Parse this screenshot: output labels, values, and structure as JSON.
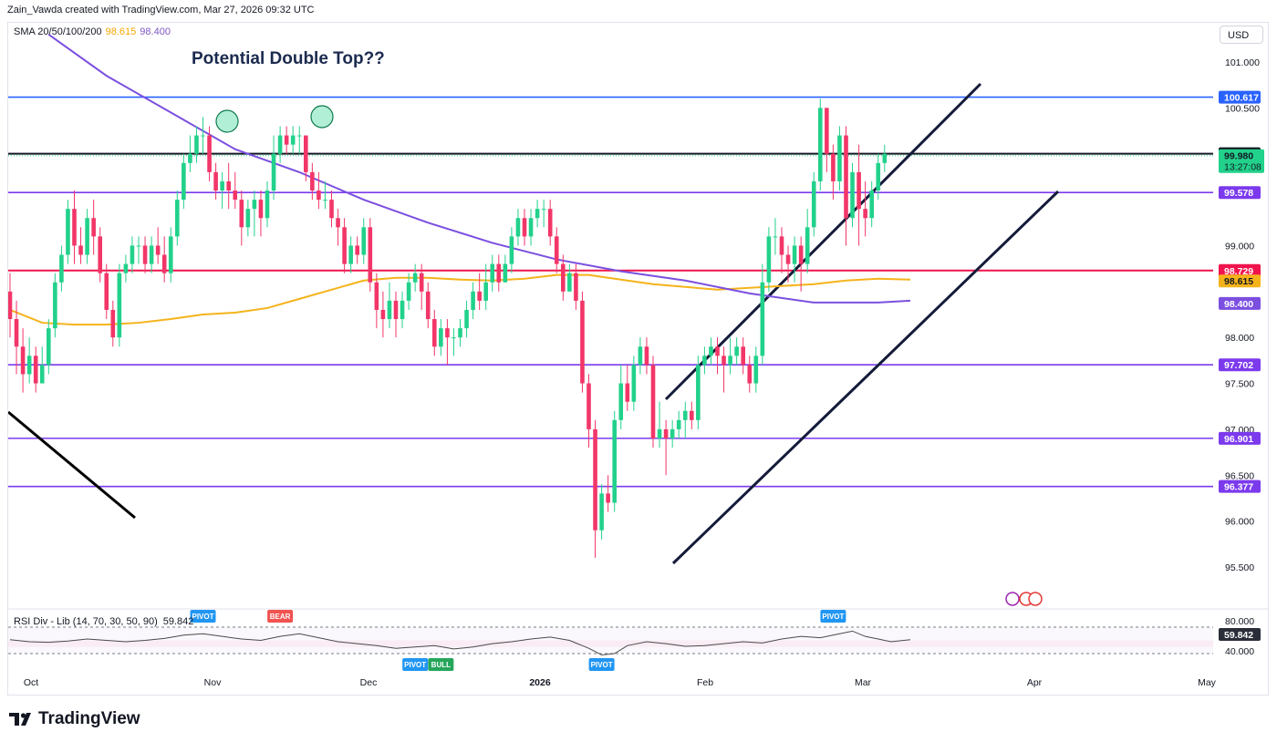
{
  "header": {
    "text": "Zain_Vawda created with TradingView.com, Mar 27, 2026 09:32 UTC"
  },
  "legend": {
    "label": "SMA 20/50/100/200",
    "val1": "98.615",
    "val2": "98.400"
  },
  "currency": "USD",
  "annotation": "Potential Double Top??",
  "rsi": {
    "label": "RSI Div - Lib (14, 70, 30, 50, 90)",
    "value": "59.842",
    "ticks": [
      "80.000",
      "40.000"
    ],
    "current": "59.842"
  },
  "brand": "TradingView",
  "colors": {
    "up": "#22d18b",
    "down": "#f23668",
    "sma_long": "#7b4fe0",
    "sma_mid": "#f5b31b",
    "resistance_red": "#f0134d",
    "blue_line": "#2962ff",
    "purple_line": "#7c3aed"
  },
  "chart_data": {
    "type": "candlestick",
    "instrument_note": "US Dollar Index daily",
    "y_range": [
      95.3,
      101.5
    ],
    "y_ticks": [
      "101.000",
      "100.500",
      "99.000",
      "98.000",
      "97.500",
      "97.000",
      "96.500",
      "96.000",
      "95.500"
    ],
    "x_labels": [
      "Oct",
      "Nov",
      "Dec",
      "2026",
      "Feb",
      "Mar",
      "Apr",
      "May"
    ],
    "horizontal_levels": [
      {
        "label": "100.617",
        "value": 100.617,
        "color": "#2962ff"
      },
      {
        "label": "100.001",
        "value": 100.001,
        "color": "#131722"
      },
      {
        "label": "99.578",
        "value": 99.578,
        "color": "#7c3aed"
      },
      {
        "label": "98.729",
        "value": 98.729,
        "color": "#f0134d"
      },
      {
        "label": "97.702",
        "value": 97.702,
        "color": "#7c3aed"
      },
      {
        "label": "96.901",
        "value": 96.901,
        "color": "#7c3aed"
      },
      {
        "label": "96.377",
        "value": 96.377,
        "color": "#7c3aed"
      }
    ],
    "last_price": {
      "label": "99.980",
      "countdown": "13:27:08"
    },
    "sma_labels": [
      {
        "label": "98.615",
        "color": "#f5b31b"
      },
      {
        "label": "98.400",
        "color": "#7b4fe0"
      }
    ],
    "candles": [
      [
        98.5,
        98.2,
        98.7,
        98.0
      ],
      [
        98.2,
        97.9,
        98.4,
        97.6
      ],
      [
        97.9,
        97.6,
        98.1,
        97.4
      ],
      [
        97.6,
        97.8,
        98.0,
        97.5
      ],
      [
        97.8,
        97.5,
        97.9,
        97.4
      ],
      [
        97.5,
        97.7,
        97.9,
        97.5
      ],
      [
        97.7,
        98.1,
        98.2,
        97.6
      ],
      [
        98.1,
        98.6,
        98.7,
        98.0
      ],
      [
        98.6,
        98.9,
        99.0,
        98.5
      ],
      [
        98.9,
        99.4,
        99.5,
        98.8
      ],
      [
        99.4,
        99.0,
        99.6,
        98.8
      ],
      [
        99.0,
        98.9,
        99.2,
        98.8
      ],
      [
        98.9,
        99.3,
        99.4,
        98.8
      ],
      [
        99.3,
        99.1,
        99.5,
        98.9
      ],
      [
        99.1,
        98.7,
        99.2,
        98.6
      ],
      [
        98.7,
        98.3,
        98.8,
        98.2
      ],
      [
        98.3,
        98.0,
        98.4,
        97.9
      ],
      [
        98.0,
        98.7,
        98.8,
        97.9
      ],
      [
        98.7,
        98.8,
        98.9,
        98.6
      ],
      [
        98.8,
        99.0,
        99.1,
        98.7
      ],
      [
        99.0,
        99.0,
        99.1,
        98.8
      ],
      [
        99.0,
        98.8,
        99.1,
        98.7
      ],
      [
        98.8,
        99.0,
        99.1,
        98.7
      ],
      [
        99.0,
        98.9,
        99.2,
        98.8
      ],
      [
        98.9,
        98.7,
        99.1,
        98.6
      ],
      [
        98.7,
        99.1,
        99.2,
        98.6
      ],
      [
        99.1,
        99.5,
        99.6,
        99.0
      ],
      [
        99.5,
        99.9,
        100.0,
        99.4
      ],
      [
        99.9,
        100.0,
        100.2,
        99.8
      ],
      [
        100.0,
        100.2,
        100.3,
        99.9
      ],
      [
        100.2,
        100.2,
        100.4,
        100.0
      ],
      [
        100.2,
        99.8,
        100.3,
        99.7
      ],
      [
        99.8,
        99.6,
        99.9,
        99.5
      ],
      [
        99.6,
        99.7,
        99.8,
        99.4
      ],
      [
        99.7,
        99.6,
        99.9,
        99.4
      ],
      [
        99.6,
        99.5,
        99.8,
        99.4
      ],
      [
        99.5,
        99.2,
        99.6,
        99.0
      ],
      [
        99.2,
        99.4,
        99.5,
        99.1
      ],
      [
        99.4,
        99.5,
        99.6,
        99.1
      ],
      [
        99.5,
        99.3,
        99.6,
        99.1
      ],
      [
        99.3,
        99.6,
        99.7,
        99.2
      ],
      [
        99.6,
        100.0,
        100.2,
        99.5
      ],
      [
        100.0,
        100.2,
        100.3,
        99.9
      ],
      [
        100.2,
        100.1,
        100.3,
        100.0
      ],
      [
        100.1,
        100.2,
        100.3,
        100.0
      ],
      [
        100.2,
        100.2,
        100.3,
        100.0
      ],
      [
        100.2,
        99.8,
        100.2,
        99.7
      ],
      [
        99.8,
        99.6,
        99.9,
        99.5
      ],
      [
        99.6,
        99.5,
        99.8,
        99.4
      ],
      [
        99.5,
        99.5,
        99.7,
        99.4
      ],
      [
        99.5,
        99.3,
        99.6,
        99.2
      ],
      [
        99.3,
        99.2,
        99.4,
        99.0
      ],
      [
        99.2,
        98.8,
        99.3,
        98.7
      ],
      [
        98.8,
        99.0,
        99.1,
        98.7
      ],
      [
        99.0,
        98.9,
        99.1,
        98.8
      ],
      [
        98.9,
        99.2,
        99.3,
        98.8
      ],
      [
        99.2,
        98.6,
        99.3,
        98.5
      ],
      [
        98.6,
        98.3,
        98.7,
        98.1
      ],
      [
        98.3,
        98.2,
        98.5,
        98.0
      ],
      [
        98.2,
        98.4,
        98.6,
        98.1
      ],
      [
        98.4,
        98.2,
        98.5,
        98.0
      ],
      [
        98.2,
        98.4,
        98.5,
        98.1
      ],
      [
        98.4,
        98.6,
        98.7,
        98.3
      ],
      [
        98.6,
        98.7,
        98.8,
        98.5
      ],
      [
        98.7,
        98.5,
        98.8,
        98.3
      ],
      [
        98.5,
        98.2,
        98.6,
        98.1
      ],
      [
        98.2,
        97.9,
        98.3,
        97.8
      ],
      [
        97.9,
        98.1,
        98.2,
        97.8
      ],
      [
        98.1,
        98.0,
        98.2,
        97.7
      ],
      [
        98.0,
        98.0,
        98.1,
        97.8
      ],
      [
        98.0,
        98.1,
        98.2,
        97.9
      ],
      [
        98.1,
        98.3,
        98.4,
        98.0
      ],
      [
        98.3,
        98.5,
        98.6,
        98.2
      ],
      [
        98.5,
        98.4,
        98.7,
        98.3
      ],
      [
        98.4,
        98.6,
        98.8,
        98.3
      ],
      [
        98.6,
        98.8,
        98.9,
        98.5
      ],
      [
        98.8,
        98.6,
        98.9,
        98.5
      ],
      [
        98.6,
        98.8,
        98.9,
        98.6
      ],
      [
        98.8,
        99.1,
        99.2,
        98.7
      ],
      [
        99.1,
        99.3,
        99.4,
        99.0
      ],
      [
        99.3,
        99.1,
        99.4,
        99.0
      ],
      [
        99.1,
        99.3,
        99.4,
        99.0
      ],
      [
        99.3,
        99.4,
        99.5,
        99.2
      ],
      [
        99.4,
        99.4,
        99.5,
        99.2
      ],
      [
        99.4,
        99.1,
        99.5,
        99.0
      ],
      [
        99.1,
        98.8,
        99.2,
        98.7
      ],
      [
        98.8,
        98.5,
        98.9,
        98.4
      ],
      [
        98.5,
        98.7,
        98.8,
        98.5
      ],
      [
        98.7,
        98.4,
        98.8,
        98.3
      ],
      [
        98.4,
        97.5,
        98.5,
        97.4
      ],
      [
        97.5,
        97.0,
        97.6,
        96.8
      ],
      [
        97.0,
        95.9,
        97.1,
        95.6
      ],
      [
        95.9,
        96.3,
        96.4,
        95.8
      ],
      [
        96.3,
        96.2,
        96.5,
        96.1
      ],
      [
        96.2,
        97.1,
        97.2,
        96.1
      ],
      [
        97.1,
        97.5,
        97.7,
        97.0
      ],
      [
        97.5,
        97.3,
        97.7,
        97.2
      ],
      [
        97.3,
        97.7,
        97.8,
        97.2
      ],
      [
        97.7,
        97.9,
        98.0,
        97.6
      ],
      [
        97.9,
        97.7,
        98.0,
        97.6
      ],
      [
        97.7,
        96.9,
        97.8,
        96.8
      ],
      [
        96.9,
        97.0,
        97.3,
        96.8
      ],
      [
        97.0,
        96.9,
        97.1,
        96.5
      ],
      [
        96.9,
        97.0,
        97.1,
        96.8
      ],
      [
        97.0,
        97.1,
        97.2,
        96.9
      ],
      [
        97.1,
        97.2,
        97.3,
        96.9
      ],
      [
        97.2,
        97.1,
        97.3,
        97.0
      ],
      [
        97.1,
        97.7,
        97.8,
        97.0
      ],
      [
        97.7,
        97.8,
        97.9,
        97.6
      ],
      [
        97.8,
        97.9,
        98.0,
        97.7
      ],
      [
        97.9,
        97.8,
        98.0,
        97.6
      ],
      [
        97.8,
        97.7,
        97.9,
        97.4
      ],
      [
        97.7,
        97.8,
        98.0,
        97.6
      ],
      [
        97.8,
        97.9,
        98.0,
        97.7
      ],
      [
        97.9,
        97.7,
        98.0,
        97.6
      ],
      [
        97.7,
        97.5,
        97.8,
        97.4
      ],
      [
        97.5,
        97.8,
        97.9,
        97.4
      ],
      [
        97.8,
        98.6,
        98.8,
        97.7
      ],
      [
        98.6,
        99.1,
        99.2,
        98.5
      ],
      [
        99.1,
        99.1,
        99.3,
        98.9
      ],
      [
        99.1,
        98.9,
        99.2,
        98.7
      ],
      [
        98.9,
        98.8,
        99.0,
        98.6
      ],
      [
        98.8,
        99.0,
        99.1,
        98.6
      ],
      [
        99.0,
        98.8,
        99.1,
        98.5
      ],
      [
        98.8,
        99.2,
        99.4,
        98.7
      ],
      [
        99.2,
        99.7,
        99.8,
        99.1
      ],
      [
        99.7,
        100.5,
        100.6,
        99.6
      ],
      [
        100.5,
        100.0,
        100.5,
        99.8
      ],
      [
        100.0,
        99.7,
        100.1,
        99.5
      ],
      [
        99.7,
        100.2,
        100.3,
        99.6
      ],
      [
        100.2,
        99.3,
        100.3,
        99.0
      ],
      [
        99.3,
        99.8,
        99.9,
        99.2
      ],
      [
        99.8,
        99.4,
        100.1,
        99.0
      ],
      [
        99.4,
        99.3,
        99.7,
        99.1
      ],
      [
        99.3,
        99.6,
        99.7,
        99.2
      ],
      [
        99.6,
        99.9,
        100.0,
        99.5
      ],
      [
        99.9,
        100.0,
        100.1,
        99.8
      ]
    ],
    "sma_mid": [
      [
        0,
        98.3
      ],
      [
        5,
        98.16
      ],
      [
        10,
        98.14
      ],
      [
        15,
        98.14
      ],
      [
        20,
        98.16
      ],
      [
        25,
        98.2
      ],
      [
        30,
        98.25
      ],
      [
        35,
        98.27
      ],
      [
        40,
        98.32
      ],
      [
        45,
        98.42
      ],
      [
        50,
        98.52
      ],
      [
        55,
        98.62
      ],
      [
        60,
        98.65
      ],
      [
        65,
        98.65
      ],
      [
        70,
        98.63
      ],
      [
        75,
        98.62
      ],
      [
        80,
        98.64
      ],
      [
        85,
        98.68
      ],
      [
        90,
        98.68
      ],
      [
        95,
        98.63
      ],
      [
        100,
        98.58
      ],
      [
        105,
        98.55
      ],
      [
        110,
        98.52
      ],
      [
        115,
        98.54
      ],
      [
        120,
        98.56
      ],
      [
        125,
        98.58
      ],
      [
        130,
        98.62
      ],
      [
        135,
        98.64
      ],
      [
        140,
        98.63
      ]
    ],
    "sma_long": [
      [
        6,
        101.3
      ],
      [
        15,
        100.85
      ],
      [
        25,
        100.45
      ],
      [
        35,
        100.05
      ],
      [
        45,
        99.8
      ],
      [
        55,
        99.5
      ],
      [
        65,
        99.25
      ],
      [
        75,
        99.03
      ],
      [
        85,
        98.85
      ],
      [
        95,
        98.72
      ],
      [
        105,
        98.62
      ],
      [
        115,
        98.48
      ],
      [
        125,
        98.38
      ],
      [
        135,
        98.38
      ],
      [
        140,
        98.4
      ]
    ],
    "rsi_line": [
      [
        0,
        61
      ],
      [
        3,
        58
      ],
      [
        6,
        57
      ],
      [
        9,
        59
      ],
      [
        12,
        62
      ],
      [
        15,
        60
      ],
      [
        18,
        58
      ],
      [
        21,
        60
      ],
      [
        24,
        63
      ],
      [
        27,
        68
      ],
      [
        30,
        70
      ],
      [
        33,
        66
      ],
      [
        36,
        62
      ],
      [
        39,
        60
      ],
      [
        42,
        66
      ],
      [
        45,
        70
      ],
      [
        48,
        64
      ],
      [
        51,
        58
      ],
      [
        54,
        55
      ],
      [
        57,
        52
      ],
      [
        60,
        48
      ],
      [
        63,
        50
      ],
      [
        66,
        52
      ],
      [
        69,
        47
      ],
      [
        72,
        50
      ],
      [
        75,
        55
      ],
      [
        78,
        58
      ],
      [
        81,
        62
      ],
      [
        84,
        65
      ],
      [
        87,
        60
      ],
      [
        90,
        48
      ],
      [
        92,
        38
      ],
      [
        94,
        40
      ],
      [
        96,
        52
      ],
      [
        99,
        58
      ],
      [
        102,
        55
      ],
      [
        105,
        51
      ],
      [
        108,
        52
      ],
      [
        111,
        55
      ],
      [
        114,
        58
      ],
      [
        117,
        56
      ],
      [
        120,
        62
      ],
      [
        123,
        66
      ],
      [
        126,
        64
      ],
      [
        129,
        70
      ],
      [
        131,
        74
      ],
      [
        133,
        66
      ],
      [
        135,
        62
      ],
      [
        137,
        58
      ],
      [
        139,
        60
      ],
      [
        140,
        61
      ]
    ],
    "rsi_markers": [
      {
        "label": "PIVOT",
        "index": 30,
        "pos": "top",
        "color": "#2196f3"
      },
      {
        "label": "BEAR",
        "index": 42,
        "pos": "top",
        "color": "#f05350"
      },
      {
        "label": "PIVOT",
        "index": 63,
        "pos": "bottom",
        "color": "#2196f3"
      },
      {
        "label": "BULL",
        "index": 67,
        "pos": "bottom",
        "color": "#26a65b"
      },
      {
        "label": "PIVOT",
        "index": 92,
        "pos": "bottom",
        "color": "#2196f3"
      },
      {
        "label": "PIVOT",
        "index": 128,
        "pos": "top",
        "color": "#2196f3"
      }
    ]
  }
}
